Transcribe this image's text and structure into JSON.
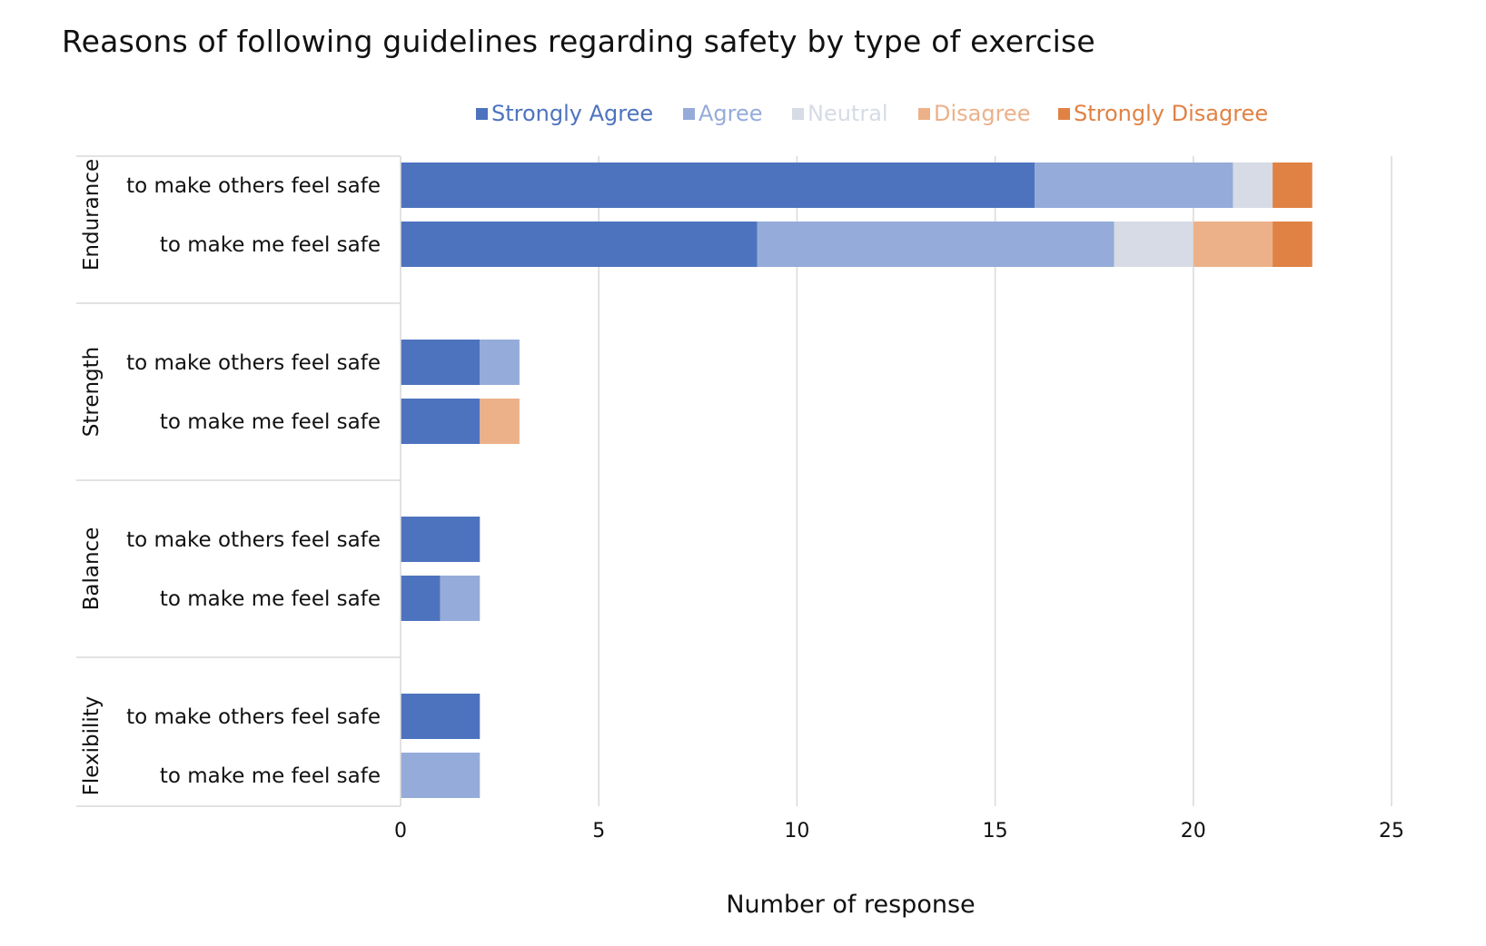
{
  "chart_data": {
    "type": "bar",
    "orientation": "horizontal",
    "stacked": true,
    "title": "Reasons of following guidelines regarding safety by type of exercise",
    "xlabel": "Number of response",
    "ylabel": "",
    "xlim": [
      0,
      25
    ],
    "xticks": [
      "0",
      "5",
      "10",
      "15",
      "20",
      "25"
    ],
    "grid": "vertical",
    "legend_position": "top",
    "groups": [
      {
        "name": "Endurance",
        "categories": [
          "to make others feel safe",
          "to make me feel safe"
        ]
      },
      {
        "name": "Strength",
        "categories": [
          "to make others feel safe",
          "to make me feel safe"
        ]
      },
      {
        "name": "Balance",
        "categories": [
          "to make others feel safe",
          "to make me feel safe"
        ]
      },
      {
        "name": "Flexibility",
        "categories": [
          "to make others feel safe",
          "to make me feel safe"
        ]
      }
    ],
    "series": [
      {
        "name": "Strongly Agree",
        "color": "#4e73be",
        "values": [
          16,
          9,
          2,
          2,
          2,
          1,
          2,
          0
        ]
      },
      {
        "name": "Agree",
        "color": "#95abd9",
        "values": [
          5,
          9,
          1,
          0,
          0,
          1,
          0,
          2
        ]
      },
      {
        "name": "Neutral",
        "color": "#d6dbe5",
        "values": [
          1,
          2,
          0,
          0,
          0,
          0,
          0,
          0
        ]
      },
      {
        "name": "Disagree",
        "color": "#ecb189",
        "values": [
          0,
          2,
          0,
          1,
          0,
          0,
          0,
          0
        ]
      },
      {
        "name": "Strongly Disagree",
        "color": "#e08244",
        "values": [
          1,
          1,
          0,
          0,
          0,
          0,
          0,
          0
        ]
      }
    ]
  }
}
